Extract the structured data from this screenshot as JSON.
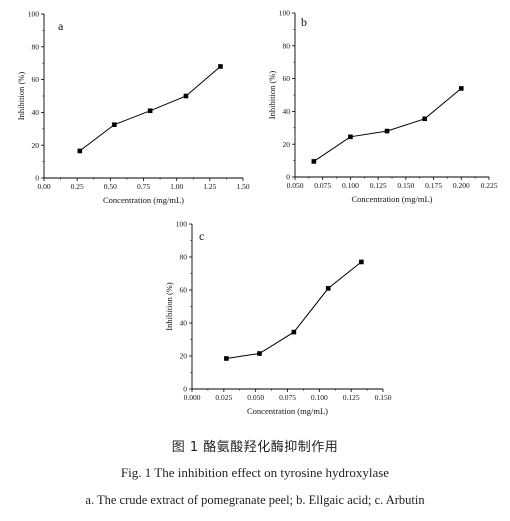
{
  "chart_data": [
    {
      "panel": "a",
      "type": "line",
      "x": [
        0.27,
        0.53,
        0.8,
        1.07,
        1.33
      ],
      "y": [
        16.5,
        32.5,
        41,
        50,
        68
      ],
      "xlabel": "Concentration (mg/mL)",
      "ylabel": "Inhibition (%)",
      "xlim": [
        0,
        1.5
      ],
      "ylim": [
        0,
        100
      ],
      "xticks": [
        "0.00",
        "0.25",
        "0.50",
        "0.75",
        "1.00",
        "1.25",
        "1.50"
      ],
      "yticks": [
        "0",
        "20",
        "40",
        "60",
        "80",
        "100"
      ],
      "marker": "square",
      "grid": false
    },
    {
      "panel": "b",
      "type": "line",
      "x": [
        0.067,
        0.1,
        0.133,
        0.167,
        0.2
      ],
      "y": [
        9.5,
        24.5,
        28,
        35.5,
        54
      ],
      "xlabel": "Concentration (mg/mL)",
      "ylabel": "Inhibition (%)",
      "xlim": [
        0.05,
        0.225
      ],
      "ylim": [
        0,
        100
      ],
      "xticks": [
        "0.050",
        "0.075",
        "0.100",
        "0.125",
        "0.150",
        "0.175",
        "0.200",
        "0.225"
      ],
      "yticks": [
        "0",
        "20",
        "40",
        "60",
        "80",
        "100"
      ],
      "marker": "square",
      "grid": false
    },
    {
      "panel": "c",
      "type": "line",
      "x": [
        0.027,
        0.053,
        0.08,
        0.107,
        0.133
      ],
      "y": [
        18.5,
        21.5,
        34.5,
        61,
        77
      ],
      "xlabel": "Concentration (mg/mL)",
      "ylabel": "Inhibition (%)",
      "xlim": [
        0,
        0.15
      ],
      "ylim": [
        0,
        100
      ],
      "xticks": [
        "0.000",
        "0.025",
        "0.050",
        "0.075",
        "0.100",
        "0.125",
        "0.150"
      ],
      "yticks": [
        "0",
        "20",
        "40",
        "60",
        "80",
        "100"
      ],
      "marker": "square",
      "grid": false
    }
  ],
  "caption": {
    "cn": "图 1    酪氨酸羟化酶抑制作用",
    "en": "Fig. 1    The inhibition effect on tyrosine hydroxylase",
    "sub": "a. The crude extract of pomegranate peel; b. Ellgaic acid; c. Arbutin"
  }
}
